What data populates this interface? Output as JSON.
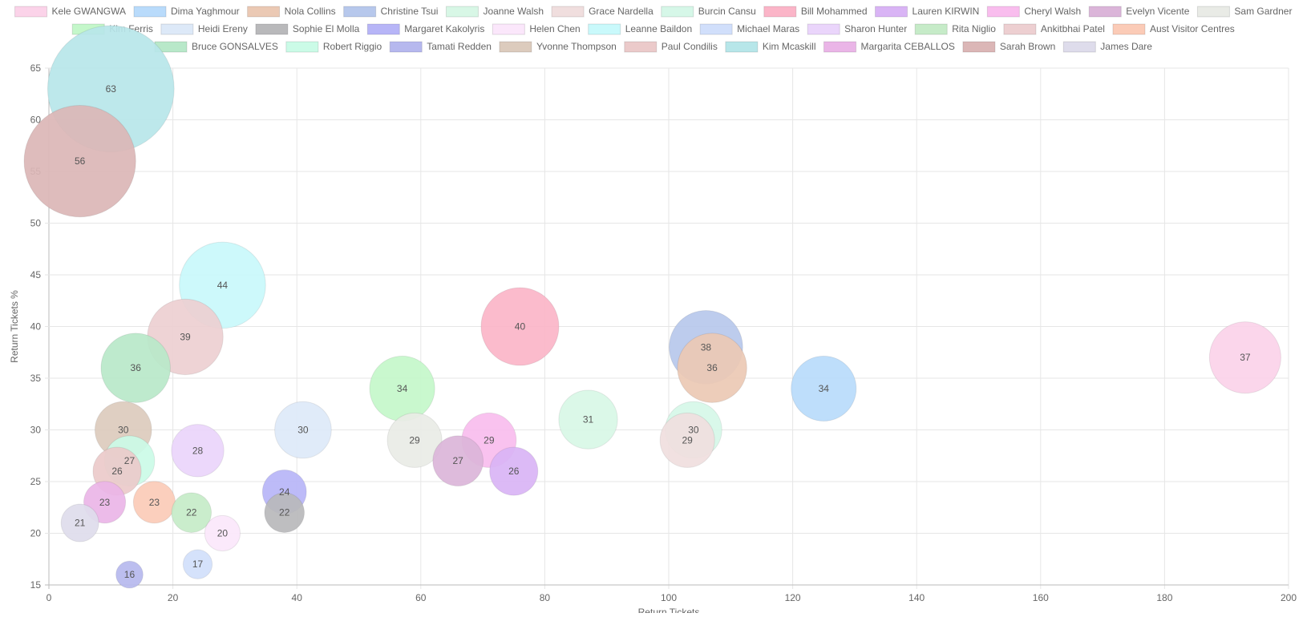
{
  "chart_data": {
    "type": "bubble",
    "xlabel": "Return Tickets",
    "ylabel": "Return Tickets %",
    "xlim": [
      0,
      200
    ],
    "ylim": [
      15,
      65
    ],
    "x_ticks": [
      0,
      20,
      40,
      60,
      80,
      100,
      120,
      140,
      160,
      180,
      200
    ],
    "y_ticks": [
      15,
      20,
      25,
      30,
      35,
      40,
      45,
      50,
      55,
      60,
      65
    ],
    "grid": true,
    "legend_position": "top",
    "series": [
      {
        "name": "Kele GWANGWA",
        "color": "#fbd3e9",
        "x": 193,
        "y": 37,
        "label": "37"
      },
      {
        "name": "Dima Yaghmour",
        "color": "#b9dbfb",
        "x": 125,
        "y": 34,
        "label": "34"
      },
      {
        "name": "Nola Collins",
        "color": "#ebc9b4",
        "x": 107,
        "y": 36,
        "label": "36"
      },
      {
        "name": "Christine Tsui",
        "color": "#b7c8ec",
        "x": 106,
        "y": 38,
        "label": "38"
      },
      {
        "name": "Joanne Walsh",
        "color": "#d8f7e6",
        "x": 87,
        "y": 31,
        "label": "31"
      },
      {
        "name": "Grace Nardella",
        "color": "#f0dede",
        "x": 103,
        "y": 29,
        "label": "29"
      },
      {
        "name": "Burcin Cansu",
        "color": "#d6f7e8",
        "x": 104,
        "y": 30,
        "label": "30"
      },
      {
        "name": "Bill Mohammed",
        "color": "#fbb5c8",
        "x": 76,
        "y": 40,
        "label": "40"
      },
      {
        "name": "Lauren KIRWIN",
        "color": "#d9b4f5",
        "x": 75,
        "y": 26,
        "label": "26"
      },
      {
        "name": "Cheryl Walsh",
        "color": "#f9bdee",
        "x": 71,
        "y": 29,
        "label": "29"
      },
      {
        "name": "Evelyn Vicente",
        "color": "#dbb5d9",
        "x": 66,
        "y": 27,
        "label": "27"
      },
      {
        "name": "Sam Gardner",
        "color": "#e9ebe6",
        "x": 59,
        "y": 29,
        "label": "29"
      },
      {
        "name": "Kim Ferris",
        "color": "#c4f7ca",
        "x": 57,
        "y": 34,
        "label": "34"
      },
      {
        "name": "Heidi Ereny",
        "color": "#dde9f8",
        "x": 41,
        "y": 30,
        "label": "30"
      },
      {
        "name": "Sophie El Molla",
        "color": "#b9b9bb",
        "x": 38,
        "y": 22,
        "label": "22"
      },
      {
        "name": "Margaret Kakolyris",
        "color": "#b7b5f7",
        "x": 38,
        "y": 24,
        "label": "24"
      },
      {
        "name": "Helen Chen",
        "color": "#fbe7fb",
        "x": 28,
        "y": 20,
        "label": "20"
      },
      {
        "name": "Leanne Baildon",
        "color": "#c9f9fb",
        "x": 28,
        "y": 44,
        "label": "44"
      },
      {
        "name": "Michael Maras",
        "color": "#d1dffb",
        "x": 24,
        "y": 17,
        "label": "17"
      },
      {
        "name": "Sharon Hunter",
        "color": "#ead5fb",
        "x": 24,
        "y": 28,
        "label": "28"
      },
      {
        "name": "Rita Niglio",
        "color": "#c6ebc8",
        "x": 23,
        "y": 22,
        "label": "22"
      },
      {
        "name": "Ankitbhai Patel",
        "color": "#edcfd1",
        "x": 22,
        "y": 39,
        "label": "39"
      },
      {
        "name": "Aust Visitor Centres",
        "color": "#fbcbb7",
        "x": 17,
        "y": 23,
        "label": "23"
      },
      {
        "name": "Bruce GONSALVES",
        "color": "#b8e8c9",
        "x": 14,
        "y": 36,
        "label": "36"
      },
      {
        "name": "Robert Riggio",
        "color": "#cbfbe7",
        "x": 13,
        "y": 27,
        "label": "27"
      },
      {
        "name": "Tamati Redden",
        "color": "#b6b8ee",
        "x": 13,
        "y": 16,
        "label": "16"
      },
      {
        "name": "Yvonne Thompson",
        "color": "#dccbbd",
        "x": 12,
        "y": 30,
        "label": "30"
      },
      {
        "name": "Paul Condilis",
        "color": "#ebcaca",
        "x": 11,
        "y": 26,
        "label": "26"
      },
      {
        "name": "Kim Mcaskill",
        "color": "#b7e6e9",
        "x": 10,
        "y": 63,
        "label": "63"
      },
      {
        "name": "Margarita CEBALLOS",
        "color": "#eab5e7",
        "x": 9,
        "y": 23,
        "label": "23"
      },
      {
        "name": "Sarah Brown",
        "color": "#dbb6b6",
        "x": 5,
        "y": 56,
        "label": "56"
      },
      {
        "name": "James Dare",
        "color": "#dedceb",
        "x": 5,
        "y": 21,
        "label": "21"
      }
    ]
  }
}
